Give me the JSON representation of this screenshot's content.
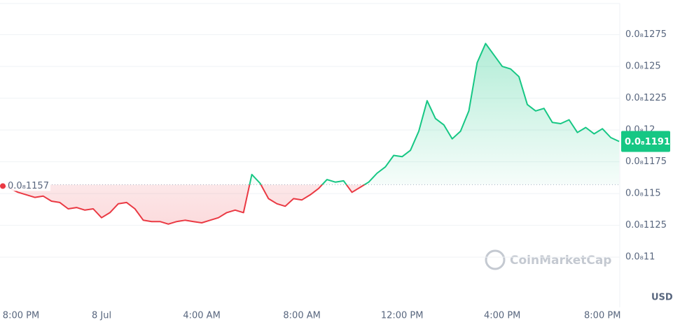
{
  "chart_data": {
    "type": "line",
    "categories": [
      "8:00 PM",
      null,
      null,
      null,
      null,
      null,
      null,
      null,
      null,
      null,
      null,
      null,
      "8 Jul",
      null,
      null,
      null,
      null,
      null,
      null,
      null,
      null,
      null,
      null,
      null,
      "4:00 AM",
      null,
      null,
      null,
      null,
      null,
      null,
      null,
      null,
      null,
      null,
      null,
      "8:00 AM",
      null,
      null,
      null,
      null,
      null,
      null,
      null,
      null,
      null,
      null,
      null,
      "12:00 PM",
      null,
      null,
      null,
      null,
      null,
      null,
      null,
      null,
      null,
      null,
      null,
      "4:00 PM",
      null,
      null,
      null,
      null,
      null,
      null,
      null,
      null,
      null,
      null,
      null,
      "8:00 PM",
      null,
      null
    ],
    "values": [
      1.157e-09,
      1.154e-09,
      1.151e-09,
      1.149e-09,
      1.147e-09,
      1.148e-09,
      1.144e-09,
      1.143e-09,
      1.138e-09,
      1.139e-09,
      1.137e-09,
      1.138e-09,
      1.131e-09,
      1.135e-09,
      1.142e-09,
      1.143e-09,
      1.138e-09,
      1.129e-09,
      1.128e-09,
      1.128e-09,
      1.126e-09,
      1.128e-09,
      1.129e-09,
      1.128e-09,
      1.127e-09,
      1.129e-09,
      1.131e-09,
      1.135e-09,
      1.137e-09,
      1.135e-09,
      1.165e-09,
      1.158e-09,
      1.146e-09,
      1.142e-09,
      1.14e-09,
      1.146e-09,
      1.145e-09,
      1.149e-09,
      1.154e-09,
      1.161e-09,
      1.159e-09,
      1.16e-09,
      1.151e-09,
      1.155e-09,
      1.159e-09,
      1.166e-09,
      1.171e-09,
      1.18e-09,
      1.179e-09,
      1.184e-09,
      1.199e-09,
      1.223e-09,
      1.209e-09,
      1.204e-09,
      1.193e-09,
      1.199e-09,
      1.215e-09,
      1.253e-09,
      1.268e-09,
      1.259e-09,
      1.25e-09,
      1.248e-09,
      1.242e-09,
      1.22e-09,
      1.215e-09,
      1.217e-09,
      1.206e-09,
      1.205e-09,
      1.208e-09,
      1.198e-09,
      1.202e-09,
      1.197e-09,
      1.201e-09,
      1.194e-09,
      1.191e-09
    ],
    "up_color": "#16c784",
    "down_color": "#ea3943",
    "baseline": {
      "value": 1.157e-09,
      "label": "0.0₈1157"
    },
    "current": {
      "value": 1.191e-09,
      "label": "0.0₈1191"
    },
    "ylim": [
      1.066e-09,
      1.2995e-09
    ],
    "yticks": [
      {
        "value": 1.1e-09,
        "label": "0.0₈11"
      },
      {
        "value": 1.125e-09,
        "label": "0.0₈1125"
      },
      {
        "value": 1.15e-09,
        "label": "0.0₈115"
      },
      {
        "value": 1.175e-09,
        "label": "0.0₈1175"
      },
      {
        "value": 1.2e-09,
        "label": "0.0₈12"
      },
      {
        "value": 1.225e-09,
        "label": "0.0₈1225"
      },
      {
        "value": 1.25e-09,
        "label": "0.0₈125"
      },
      {
        "value": 1.275e-09,
        "label": "0.0₈1275"
      }
    ],
    "grid": true,
    "currency": "USD",
    "watermark": "CoinMarketCap"
  }
}
